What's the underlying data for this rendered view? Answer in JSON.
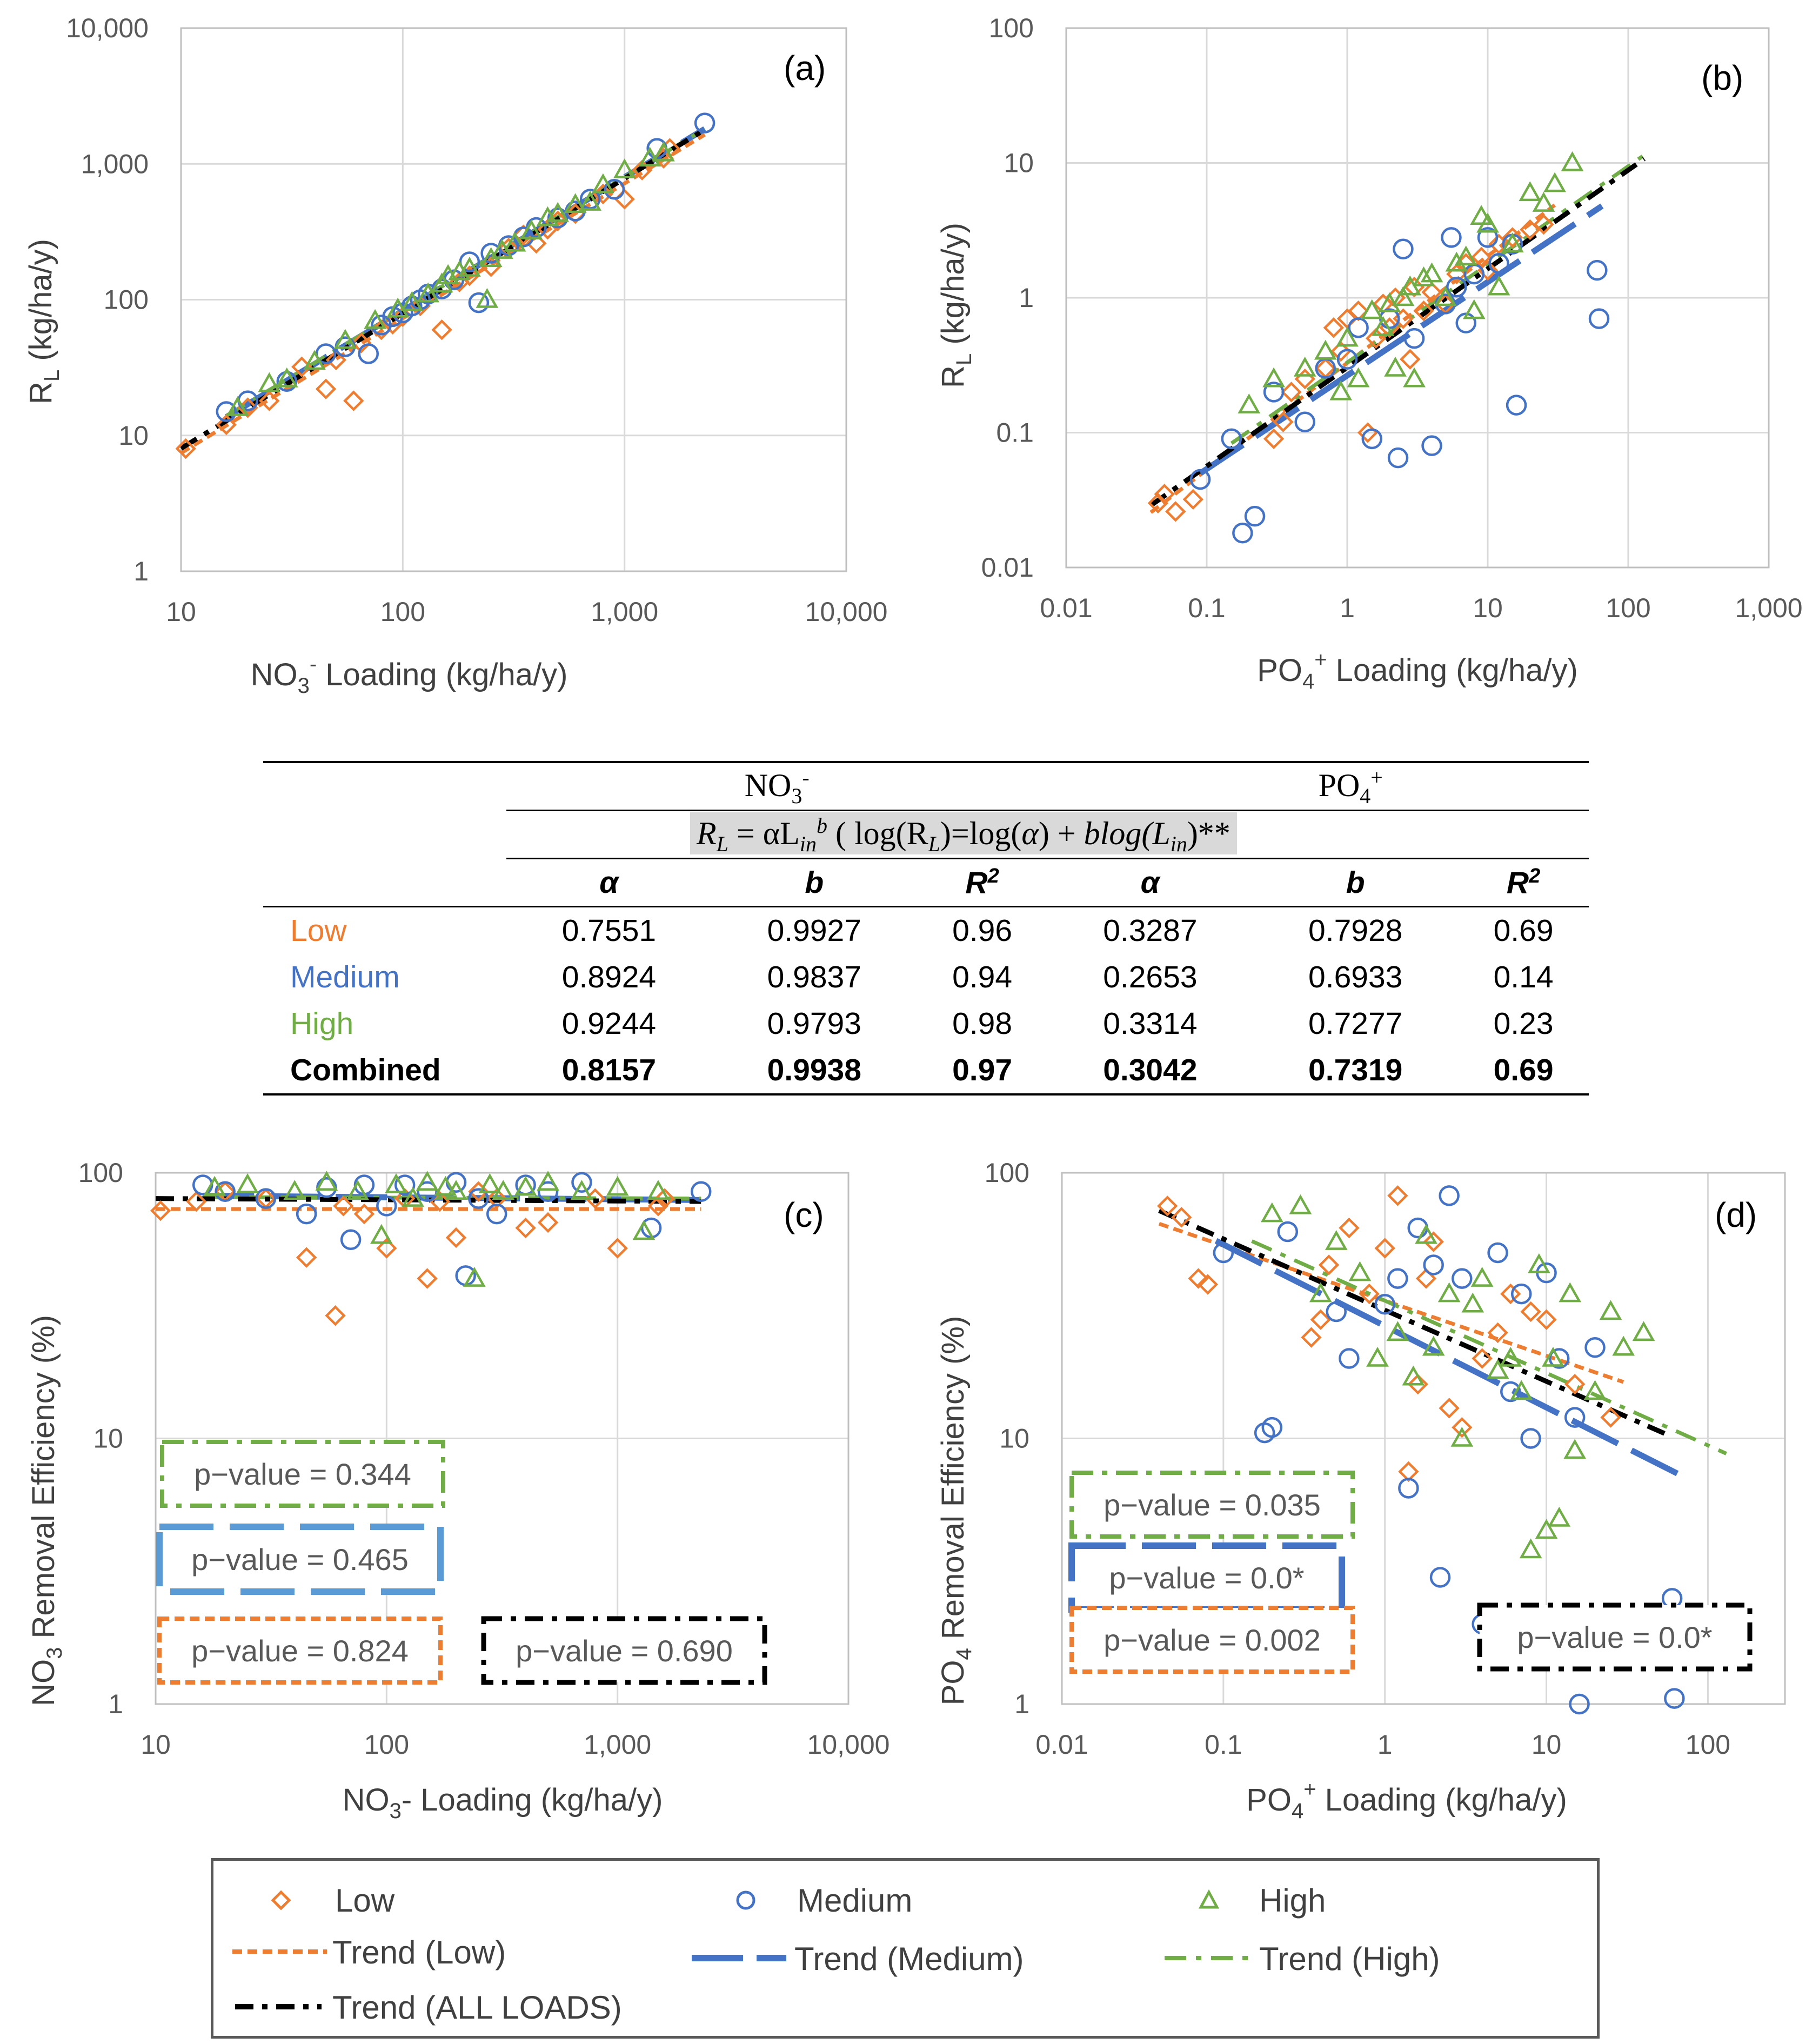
{
  "colors": {
    "low": "#ED7D31",
    "medium": "#4472C4",
    "high": "#70AD47",
    "combined": "#000000",
    "medium_light": "#5B9BD5",
    "grid": "#d9d9d9"
  },
  "chart_data": [
    {
      "type": "scatter",
      "panel": "(a)",
      "xlabel": "NO3- Loading (kg/ha/y)",
      "ylabel": "RL (kg/ha/y)",
      "xscale": "log",
      "yscale": "log",
      "xlim": [
        10,
        10000
      ],
      "ylim": [
        1,
        10000
      ],
      "xticks": [
        "10",
        "100",
        "1,000",
        "10,000"
      ],
      "yticks": [
        "1",
        "10",
        "100",
        "1,000",
        "10,000"
      ],
      "series": [
        {
          "name": "Low",
          "x": [
            10.5,
            16,
            20,
            25,
            35,
            45,
            50,
            60,
            65,
            80,
            90,
            100,
            120,
            150,
            180,
            200,
            250,
            300,
            350,
            400,
            450,
            500,
            600,
            800,
            1000,
            1200,
            1500,
            1600
          ],
          "y": [
            8,
            12,
            16,
            18,
            32,
            22,
            36,
            18,
            48,
            60,
            66,
            75,
            90,
            60,
            135,
            150,
            175,
            240,
            300,
            260,
            330,
            380,
            430,
            600,
            550,
            900,
            1100,
            1300
          ]
        },
        {
          "name": "Medium",
          "x": [
            16,
            20,
            30,
            45,
            55,
            70,
            80,
            90,
            100,
            110,
            120,
            130,
            150,
            170,
            200,
            220,
            250,
            300,
            350,
            400,
            500,
            600,
            700,
            900,
            1400,
            2300
          ],
          "y": [
            15,
            18,
            25,
            40,
            45,
            40,
            65,
            75,
            80,
            90,
            100,
            110,
            120,
            140,
            190,
            95,
            220,
            250,
            290,
            340,
            400,
            450,
            550,
            650,
            1300,
            2000
          ]
        },
        {
          "name": "High",
          "x": [
            18,
            25,
            30,
            40,
            55,
            75,
            95,
            110,
            130,
            150,
            160,
            180,
            200,
            240,
            250,
            280,
            320,
            380,
            450,
            500,
            600,
            700,
            800,
            1000,
            1300,
            1500
          ],
          "y": [
            16,
            24,
            26,
            35,
            50,
            70,
            85,
            95,
            110,
            130,
            150,
            160,
            170,
            100,
            200,
            230,
            260,
            320,
            400,
            430,
            500,
            520,
            700,
            900,
            1100,
            1200
          ]
        }
      ],
      "trends": [
        {
          "name": "Trend (Low)",
          "alpha": 0.7551,
          "b": 0.9927,
          "x": [
            10,
            2300
          ]
        },
        {
          "name": "Trend (Medium)",
          "alpha": 0.8924,
          "b": 0.9837,
          "x": [
            16,
            2300
          ]
        },
        {
          "name": "Trend (High)",
          "alpha": 0.9244,
          "b": 0.9793,
          "x": [
            16,
            2300
          ]
        },
        {
          "name": "Trend (ALL LOADS)",
          "alpha": 0.8157,
          "b": 0.9938,
          "x": [
            10,
            2300
          ]
        }
      ]
    },
    {
      "type": "scatter",
      "panel": "(b)",
      "xlabel": "PO4+ Loading (kg/ha/y)",
      "ylabel": "RL (kg/ha/y)",
      "xscale": "log",
      "yscale": "log",
      "xlim": [
        0.01,
        1000
      ],
      "ylim": [
        0.01,
        100
      ],
      "xticks": [
        "0.01",
        "0.1",
        "1",
        "10",
        "100",
        "1,000"
      ],
      "yticks": [
        "0.01",
        "0.1",
        "1",
        "10",
        "100"
      ],
      "series": [
        {
          "name": "Low",
          "x": [
            0.045,
            0.05,
            0.06,
            0.08,
            0.3,
            0.35,
            0.4,
            0.5,
            0.7,
            0.8,
            0.9,
            1.0,
            1.2,
            1.4,
            1.6,
            1.8,
            2.0,
            2.2,
            2.5,
            2.8,
            3.0,
            3.5,
            4.0,
            5.0,
            6.0,
            7.0,
            9.0,
            10,
            12,
            15,
            20,
            25
          ],
          "y": [
            0.03,
            0.035,
            0.026,
            0.032,
            0.09,
            0.12,
            0.2,
            0.25,
            0.3,
            0.6,
            0.4,
            0.7,
            0.8,
            0.1,
            0.5,
            0.9,
            0.6,
            1.0,
            0.7,
            0.35,
            1.2,
            0.8,
            1.1,
            0.9,
            1.5,
            1.8,
            2.0,
            1.6,
            2.5,
            2.8,
            3.2,
            3.5
          ]
        },
        {
          "name": "Medium",
          "x": [
            0.09,
            0.15,
            0.18,
            0.22,
            0.3,
            0.5,
            0.7,
            1.0,
            1.2,
            1.5,
            2.0,
            2.3,
            2.5,
            3.0,
            4.0,
            5.0,
            5.5,
            6.0,
            7.0,
            8.0,
            10,
            12,
            15,
            16,
            60,
            62
          ],
          "y": [
            0.045,
            0.09,
            0.018,
            0.024,
            0.2,
            0.12,
            0.3,
            0.35,
            0.6,
            0.09,
            0.7,
            0.065,
            2.3,
            0.5,
            0.08,
            0.9,
            2.8,
            1.2,
            0.65,
            1.5,
            2.8,
            1.8,
            2.5,
            0.16,
            1.6,
            0.7
          ]
        },
        {
          "name": "High",
          "x": [
            0.2,
            0.3,
            0.5,
            0.7,
            0.9,
            1.0,
            1.2,
            1.5,
            1.8,
            2.0,
            2.2,
            2.5,
            2.8,
            3.0,
            3.5,
            4.0,
            5.0,
            6.0,
            7.0,
            8.0,
            9.0,
            10,
            12,
            15,
            20,
            25,
            30,
            40
          ],
          "y": [
            0.16,
            0.25,
            0.3,
            0.4,
            0.2,
            0.5,
            0.25,
            0.8,
            0.6,
            0.9,
            0.3,
            1.0,
            1.2,
            0.25,
            1.4,
            1.5,
            1.0,
            1.8,
            2.0,
            0.8,
            4.0,
            3.5,
            1.2,
            2.5,
            6.0,
            5.0,
            7.0,
            10.0
          ]
        }
      ],
      "trends": [
        {
          "name": "Trend (Low)",
          "alpha": 0.3287,
          "b": 0.7928,
          "x": [
            0.04,
            30
          ]
        },
        {
          "name": "Trend (Medium)",
          "alpha": 0.2653,
          "b": 0.6933,
          "x": [
            0.09,
            65
          ]
        },
        {
          "name": "Trend (High)",
          "alpha": 0.3314,
          "b": 0.7277,
          "x": [
            0.15,
            130
          ]
        },
        {
          "name": "Trend (ALL LOADS)",
          "alpha": 0.3042,
          "b": 0.7319,
          "x": [
            0.04,
            130
          ]
        }
      ]
    },
    {
      "type": "scatter",
      "panel": "(c)",
      "xlabel": "NO3- Loading (kg/ha/y)",
      "ylabel": "NO3 Removal Efficiency (%)",
      "xscale": "log",
      "yscale": "log",
      "xlim": [
        10,
        10000
      ],
      "ylim": [
        1,
        100
      ],
      "xticks": [
        "10",
        "100",
        "1,000",
        "10,000"
      ],
      "yticks": [
        "1",
        "10",
        "100"
      ],
      "series": [
        {
          "name": "Low",
          "x": [
            10.5,
            15,
            20,
            30,
            45,
            60,
            65,
            80,
            100,
            120,
            150,
            170,
            200,
            250,
            300,
            400,
            500,
            800,
            1000,
            1500,
            1600
          ],
          "y": [
            72,
            78,
            85,
            80,
            48,
            29,
            75,
            70,
            52,
            80,
            40,
            78,
            57,
            85,
            80,
            62,
            65,
            80,
            52,
            75,
            80
          ]
        },
        {
          "name": "Medium",
          "x": [
            16,
            20,
            30,
            45,
            55,
            70,
            80,
            100,
            120,
            150,
            200,
            220,
            250,
            300,
            400,
            500,
            700,
            1400,
            2300
          ],
          "y": [
            90,
            85,
            80,
            70,
            88,
            56,
            90,
            75,
            90,
            85,
            92,
            41,
            80,
            70,
            90,
            85,
            92,
            62,
            85
          ]
        },
        {
          "name": "High",
          "x": [
            18,
            25,
            40,
            55,
            75,
            95,
            110,
            130,
            150,
            180,
            200,
            240,
            280,
            320,
            400,
            500,
            700,
            1000,
            1300,
            1500
          ],
          "y": [
            88,
            90,
            85,
            92,
            85,
            58,
            90,
            80,
            92,
            88,
            85,
            40,
            90,
            85,
            88,
            92,
            85,
            88,
            60,
            85
          ]
        }
      ],
      "trends": [
        {
          "name": "Trend (Low)",
          "y": [
            73,
            73
          ],
          "x": [
            10,
            2300
          ]
        },
        {
          "name": "Trend (Medium)",
          "y": [
            82,
            79
          ],
          "x": [
            16,
            2300
          ]
        },
        {
          "name": "Trend (High)",
          "y": [
            81,
            80
          ],
          "x": [
            16,
            2300
          ]
        },
        {
          "name": "Trend (ALL LOADS)",
          "y": [
            80,
            78
          ],
          "x": [
            10,
            2300
          ]
        }
      ],
      "annotations": [
        {
          "text": "p−value = 0.344",
          "series": "High"
        },
        {
          "text": "p−value = 0.465",
          "series": "Medium"
        },
        {
          "text": "p−value = 0.824",
          "series": "Low"
        },
        {
          "text": "p−value = 0.690",
          "series": "ALL LOADS"
        }
      ]
    },
    {
      "type": "scatter",
      "panel": "(d)",
      "xlabel": "PO4+ Loading (kg/ha/y)",
      "ylabel": "PO4 Removal Efficiency (%)",
      "xscale": "log",
      "yscale": "log",
      "xlim": [
        0.01,
        300
      ],
      "ylim": [
        1,
        100
      ],
      "xticks": [
        "0.01",
        "0.1",
        "1",
        "10",
        "100"
      ],
      "yticks": [
        "1",
        "10",
        "100"
      ],
      "series": [
        {
          "name": "Low",
          "x": [
            0.045,
            0.055,
            0.07,
            0.08,
            0.35,
            0.4,
            0.45,
            0.6,
            0.8,
            1.0,
            1.2,
            1.4,
            1.6,
            1.8,
            2.0,
            2.5,
            3.0,
            4.0,
            5.0,
            6.0,
            8.0,
            10,
            15,
            25
          ],
          "y": [
            75,
            68,
            40,
            38,
            24,
            28,
            45,
            62,
            35,
            52,
            82,
            7.5,
            16,
            40,
            55,
            13,
            11,
            20,
            25,
            35,
            30,
            28,
            16,
            12
          ]
        },
        {
          "name": "Medium",
          "x": [
            0.1,
            0.18,
            0.2,
            0.25,
            0.5,
            0.6,
            1.0,
            1.2,
            1.4,
            1.6,
            2.0,
            2.2,
            2.5,
            3.0,
            4.0,
            5.0,
            6.0,
            7.0,
            8.0,
            10,
            12,
            15,
            16,
            20,
            60,
            62
          ],
          "y": [
            50,
            10.5,
            11,
            60,
            30,
            20,
            32,
            40,
            6.5,
            62,
            45,
            3.0,
            82,
            40,
            2.0,
            50,
            15,
            35,
            10,
            42,
            20,
            12,
            1.0,
            22,
            2.5,
            1.05
          ]
        },
        {
          "name": "High",
          "x": [
            0.2,
            0.3,
            0.4,
            0.5,
            0.7,
            0.9,
            1.2,
            1.5,
            1.8,
            2.0,
            2.5,
            3.0,
            3.5,
            4.0,
            5.0,
            6.0,
            7.0,
            8.0,
            9.0,
            10,
            11,
            12,
            14,
            15,
            20,
            25,
            30,
            40
          ],
          "y": [
            70,
            75,
            35,
            55,
            42,
            20,
            25,
            17,
            58,
            22,
            35,
            10,
            32,
            40,
            18,
            20,
            15,
            3.8,
            45,
            4.5,
            20,
            5.0,
            35,
            9.0,
            15,
            30,
            22,
            25
          ]
        }
      ],
      "trends": [
        {
          "name": "Trend (Low)",
          "alpha": 33,
          "b": -0.2072,
          "x": [
            0.04,
            30
          ]
        },
        {
          "name": "Trend (Medium)",
          "alpha": 26.5,
          "b": -0.3067,
          "x": [
            0.09,
            65
          ]
        },
        {
          "name": "Trend (High)",
          "alpha": 33,
          "b": -0.2723,
          "x": [
            0.15,
            130
          ]
        },
        {
          "name": "Trend (ALL LOADS)",
          "alpha": 30.4,
          "b": -0.2681,
          "x": [
            0.04,
            60
          ]
        }
      ],
      "annotations": [
        {
          "text": "p−value = 0.035",
          "series": "High"
        },
        {
          "text": "p−value = 0.0*",
          "series": "Medium"
        },
        {
          "text": "p−value = 0.002",
          "series": "Low"
        },
        {
          "text": "p−value = 0.0*",
          "series": "ALL LOADS"
        }
      ]
    }
  ],
  "table": {
    "group_no3": "NO",
    "group_no3_sub": "3",
    "group_no3_sup": "-",
    "group_po4": "PO",
    "group_po4_sub": "4",
    "group_po4_sup": "+",
    "equation": "RL = αLin^b ( log(RL)=log(α) + blog(Lin))**",
    "eq_RL": "R",
    "eq_L_sub": "L",
    "eq_eq": " = αL",
    "eq_in_sub": "in",
    "eq_b_sup": "b",
    "eq_mid": " ( log(R",
    "eq_mid_sub": "L",
    "eq_mid2": ")=log(",
    "eq_alpha": "α",
    "eq_mid3": ") + ",
    "eq_blog": "blog(L",
    "eq_in2_sub": "in",
    "eq_end": ")**",
    "headers": [
      "α",
      "b",
      "R",
      "α",
      "b",
      "R"
    ],
    "r2_sup": "2",
    "rows": [
      {
        "label": "Low",
        "values": [
          "0.7551",
          "0.9927",
          "0.96",
          "0.3287",
          "0.7928",
          "0.69"
        ]
      },
      {
        "label": "Medium",
        "values": [
          "0.8924",
          "0.9837",
          "0.94",
          "0.2653",
          "0.6933",
          "0.14"
        ]
      },
      {
        "label": "High",
        "values": [
          "0.9244",
          "0.9793",
          "0.98",
          "0.3314",
          "0.7277",
          "0.23"
        ]
      },
      {
        "label": "Combined",
        "values": [
          "0.8157",
          "0.9938",
          "0.97",
          "0.3042",
          "0.7319",
          "0.69"
        ]
      }
    ]
  },
  "labels": {
    "a_panel": "(a)",
    "b_panel": "(b)",
    "c_panel": "(c)",
    "d_panel": "(d)",
    "a_x": "NO",
    "a_x_sub": "3",
    "a_x_sup": "-",
    "a_x_rest": " Loading (kg/ha/y)",
    "b_x": "PO",
    "b_x_sub": "4",
    "b_x_sup": "+",
    "b_x_rest": " Loading (kg/ha/y)",
    "c_x": "NO",
    "c_x_sub": "3",
    "c_x_rest": "- Loading (kg/ha/y)",
    "d_x": "PO",
    "d_x_sub": "4",
    "d_x_sup": "+",
    "d_x_rest": " Loading (kg/ha/y)",
    "rl_y": "R",
    "rl_y_sub": "L",
    "rl_y_rest": " (kg/ha/y)",
    "c_y": "NO",
    "c_y_sub": "3",
    "c_y_rest": " Removal Efficiency (%)",
    "d_y": "PO",
    "d_y_sub": "4",
    "d_y_rest": " Removal Efficiency (%)"
  },
  "legend": {
    "low": "Low",
    "medium": "Medium",
    "high": "High",
    "trend_low": "Trend (Low)",
    "trend_medium": "Trend (Medium)",
    "trend_high": "Trend (High)",
    "trend_all": "Trend (ALL LOADS)"
  }
}
